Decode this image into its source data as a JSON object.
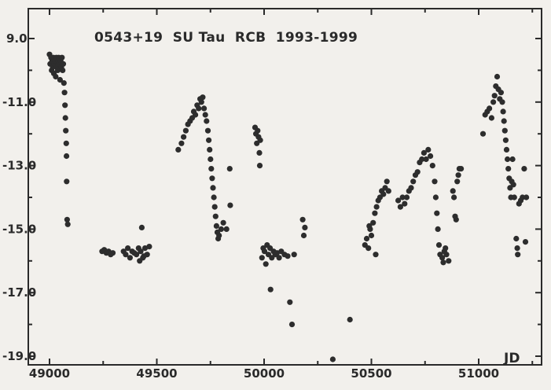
{
  "chart_data": {
    "type": "scatter",
    "title": "0543+19  SU Tau  RCB  1993-1999",
    "xlabel": "JD",
    "ylabel": "",
    "xlim": [
      48990,
      51310
    ],
    "ylim": [
      19.0,
      8.7
    ],
    "y_inverted": true,
    "x_ticks": [
      49000,
      49500,
      50000,
      50500,
      51000
    ],
    "x_tick_labels": [
      "49000",
      "49500",
      "50000",
      "50500",
      "51000"
    ],
    "y_ticks": [
      9.0,
      11.0,
      13.0,
      15.0,
      17.0,
      19.0
    ],
    "y_tick_labels": [
      "9.0",
      "-11.0",
      "-13.0",
      "-15.0",
      "-17.0",
      "-19.0"
    ],
    "grid": false,
    "legend": "none",
    "marker_color": "#2d2d2d",
    "series": [
      {
        "values": [
          [
            49000,
            9.5
          ],
          [
            49003,
            9.8
          ],
          [
            49007,
            9.6
          ],
          [
            49010,
            10.0
          ],
          [
            49012,
            9.7
          ],
          [
            49015,
            9.9
          ],
          [
            49018,
            9.6
          ],
          [
            49020,
            10.1
          ],
          [
            49023,
            9.8
          ],
          [
            49026,
            9.7
          ],
          [
            49029,
            10.2
          ],
          [
            49032,
            9.6
          ],
          [
            49035,
            9.9
          ],
          [
            49038,
            10.0
          ],
          [
            49040,
            9.7
          ],
          [
            49043,
            9.6
          ],
          [
            49046,
            9.8
          ],
          [
            49049,
            10.3
          ],
          [
            49052,
            9.7
          ],
          [
            49055,
            9.9
          ],
          [
            49058,
            9.6
          ],
          [
            49061,
            10.0
          ],
          [
            49064,
            9.8
          ],
          [
            49067,
            10.4
          ],
          [
            49070,
            10.7
          ],
          [
            49072,
            11.1
          ],
          [
            49074,
            11.5
          ],
          [
            49076,
            11.9
          ],
          [
            49078,
            12.3
          ],
          [
            49079,
            12.7
          ],
          [
            49080,
            13.5
          ],
          [
            49082,
            14.7
          ],
          [
            49085,
            14.85
          ],
          [
            49245,
            15.7
          ],
          [
            49255,
            15.65
          ],
          [
            49265,
            15.75
          ],
          [
            49275,
            15.7
          ],
          [
            49285,
            15.8
          ],
          [
            49295,
            15.75
          ],
          [
            49345,
            15.7
          ],
          [
            49355,
            15.8
          ],
          [
            49365,
            15.6
          ],
          [
            49375,
            15.9
          ],
          [
            49385,
            15.7
          ],
          [
            49395,
            15.75
          ],
          [
            49405,
            15.8
          ],
          [
            49415,
            15.6
          ],
          [
            49425,
            15.7
          ],
          [
            49435,
            15.9
          ],
          [
            49445,
            15.6
          ],
          [
            49455,
            15.8
          ],
          [
            49420,
            16.0
          ],
          [
            49440,
            15.85
          ],
          [
            49430,
            14.95
          ],
          [
            49465,
            15.55
          ],
          [
            49600,
            12.5
          ],
          [
            49615,
            12.3
          ],
          [
            49625,
            12.1
          ],
          [
            49635,
            11.9
          ],
          [
            49645,
            11.7
          ],
          [
            49655,
            11.6
          ],
          [
            49665,
            11.5
          ],
          [
            49672,
            11.3
          ],
          [
            49680,
            11.4
          ],
          [
            49688,
            11.1
          ],
          [
            49695,
            11.2
          ],
          [
            49702,
            10.9
          ],
          [
            49708,
            11.0
          ],
          [
            49714,
            10.85
          ],
          [
            49720,
            11.2
          ],
          [
            49726,
            11.4
          ],
          [
            49732,
            11.6
          ],
          [
            49738,
            11.9
          ],
          [
            49742,
            12.2
          ],
          [
            49746,
            12.5
          ],
          [
            49750,
            12.8
          ],
          [
            49754,
            13.1
          ],
          [
            49758,
            13.4
          ],
          [
            49762,
            13.7
          ],
          [
            49766,
            14.0
          ],
          [
            49770,
            14.3
          ],
          [
            49774,
            14.6
          ],
          [
            49778,
            14.9
          ],
          [
            49782,
            15.1
          ],
          [
            49786,
            15.3
          ],
          [
            49790,
            15.2
          ],
          [
            49800,
            15.0
          ],
          [
            49810,
            14.8
          ],
          [
            49825,
            15.0
          ],
          [
            49840,
            13.1
          ],
          [
            49842,
            14.25
          ],
          [
            49958,
            11.8
          ],
          [
            49962,
            12.0
          ],
          [
            49966,
            12.3
          ],
          [
            49970,
            11.9
          ],
          [
            49974,
            12.1
          ],
          [
            49978,
            12.6
          ],
          [
            49980,
            13.0
          ],
          [
            49982,
            12.2
          ],
          [
            49990,
            15.9
          ],
          [
            49996,
            15.6
          ],
          [
            50002,
            15.7
          ],
          [
            50008,
            16.1
          ],
          [
            50014,
            15.5
          ],
          [
            50020,
            15.8
          ],
          [
            50028,
            15.6
          ],
          [
            50036,
            15.9
          ],
          [
            50044,
            15.7
          ],
          [
            50052,
            15.8
          ],
          [
            50060,
            15.75
          ],
          [
            50070,
            15.9
          ],
          [
            50080,
            15.7
          ],
          [
            50095,
            15.8
          ],
          [
            50110,
            15.85
          ],
          [
            50030,
            16.9
          ],
          [
            50120,
            17.3
          ],
          [
            50140,
            15.8
          ],
          [
            50130,
            18.0
          ],
          [
            50180,
            14.7
          ],
          [
            50185,
            15.2
          ],
          [
            50190,
            14.95
          ],
          [
            50320,
            19.1
          ],
          [
            50400,
            17.85
          ],
          [
            50470,
            15.5
          ],
          [
            50478,
            15.3
          ],
          [
            50486,
            15.6
          ],
          [
            50494,
            15.0
          ],
          [
            50500,
            15.2
          ],
          [
            50508,
            14.8
          ],
          [
            50516,
            14.5
          ],
          [
            50524,
            14.3
          ],
          [
            50532,
            14.1
          ],
          [
            50540,
            14.0
          ],
          [
            50548,
            13.8
          ],
          [
            50556,
            13.9
          ],
          [
            50564,
            13.7
          ],
          [
            50572,
            13.5
          ],
          [
            50580,
            13.8
          ],
          [
            50520,
            15.8
          ],
          [
            50490,
            14.9
          ],
          [
            50625,
            14.1
          ],
          [
            50635,
            14.3
          ],
          [
            50645,
            14.0
          ],
          [
            50655,
            14.2
          ],
          [
            50665,
            14.0
          ],
          [
            50675,
            13.8
          ],
          [
            50685,
            13.7
          ],
          [
            50695,
            13.5
          ],
          [
            50705,
            13.3
          ],
          [
            50715,
            13.2
          ],
          [
            50725,
            12.9
          ],
          [
            50735,
            12.8
          ],
          [
            50745,
            12.6
          ],
          [
            50755,
            12.8
          ],
          [
            50765,
            12.5
          ],
          [
            50775,
            12.7
          ],
          [
            50785,
            13.0
          ],
          [
            50795,
            13.5
          ],
          [
            50800,
            14.0
          ],
          [
            50805,
            14.5
          ],
          [
            50810,
            15.0
          ],
          [
            50815,
            15.5
          ],
          [
            50820,
            15.8
          ],
          [
            50830,
            15.9
          ],
          [
            50840,
            15.7
          ],
          [
            50850,
            15.8
          ],
          [
            50860,
            16.0
          ],
          [
            50835,
            16.05
          ],
          [
            50845,
            15.6
          ],
          [
            50880,
            13.8
          ],
          [
            50885,
            14.0
          ],
          [
            50890,
            14.6
          ],
          [
            50895,
            14.7
          ],
          [
            50900,
            13.5
          ],
          [
            50905,
            13.3
          ],
          [
            50910,
            13.1
          ],
          [
            50918,
            13.1
          ],
          [
            51020,
            12.0
          ],
          [
            51030,
            11.4
          ],
          [
            51040,
            11.3
          ],
          [
            51050,
            11.2
          ],
          [
            51060,
            11.5
          ],
          [
            51068,
            11.0
          ],
          [
            51074,
            10.8
          ],
          [
            51080,
            10.5
          ],
          [
            51086,
            10.2
          ],
          [
            51092,
            10.6
          ],
          [
            51098,
            10.9
          ],
          [
            51104,
            10.7
          ],
          [
            51110,
            11.0
          ],
          [
            51114,
            11.3
          ],
          [
            51118,
            11.6
          ],
          [
            51122,
            11.9
          ],
          [
            51126,
            12.2
          ],
          [
            51130,
            12.5
          ],
          [
            51134,
            12.8
          ],
          [
            51138,
            13.1
          ],
          [
            51142,
            13.4
          ],
          [
            51146,
            13.7
          ],
          [
            51150,
            14.0
          ],
          [
            51154,
            13.5
          ],
          [
            51158,
            12.8
          ],
          [
            51162,
            13.6
          ],
          [
            51166,
            14.0
          ],
          [
            51175,
            15.3
          ],
          [
            51180,
            15.6
          ],
          [
            51182,
            15.8
          ],
          [
            51188,
            14.2
          ],
          [
            51196,
            14.1
          ],
          [
            51204,
            14.0
          ],
          [
            51212,
            13.1
          ],
          [
            51218,
            15.4
          ],
          [
            51222,
            14.0
          ]
        ]
      }
    ]
  }
}
